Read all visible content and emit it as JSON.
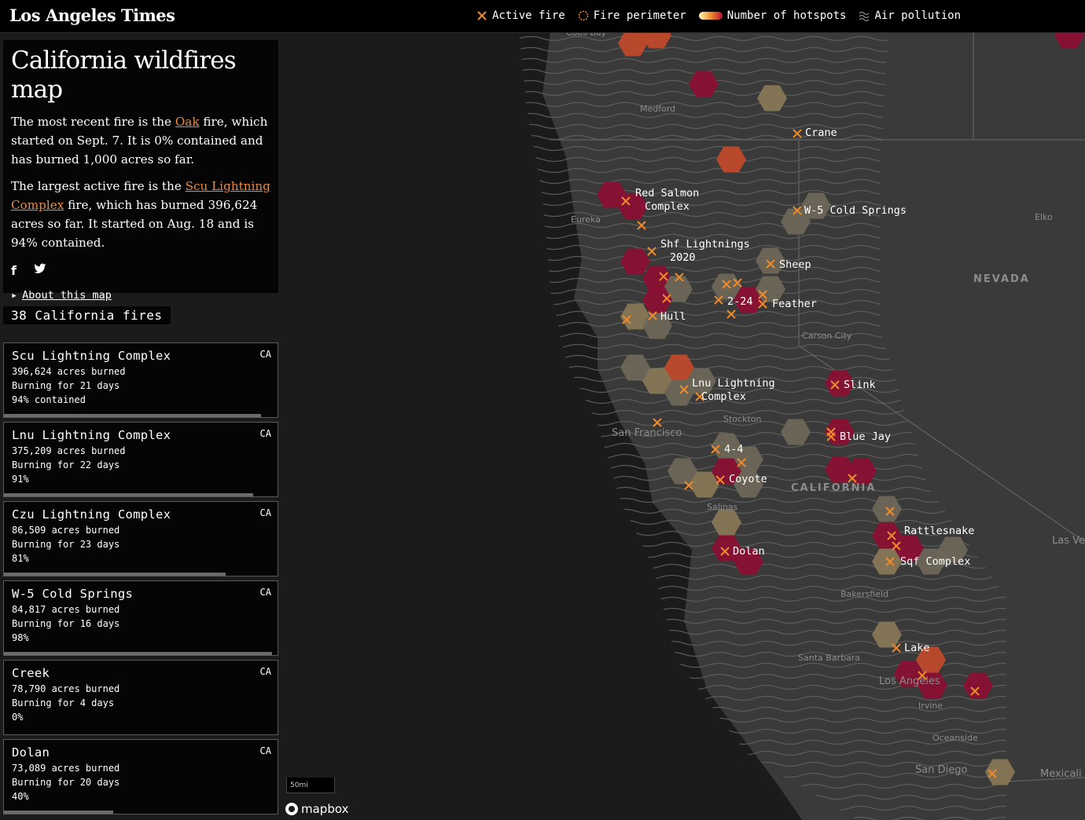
{
  "header": {
    "logo": "Los Angeles Times",
    "legend": [
      {
        "label": "Active fire",
        "icon": "x-icon"
      },
      {
        "label": "Fire perimeter",
        "icon": "perimeter-icon"
      },
      {
        "label": "Number of hotspots",
        "icon": "gradient-icon"
      },
      {
        "label": "Air pollution",
        "icon": "wave-icon"
      }
    ]
  },
  "panel": {
    "title": "California wildfires map",
    "p1": {
      "a": "The most recent fire is the ",
      "link": "Oak",
      "b": " fire, which started on Sept. 7. It is 0% contained and has burned 1,000 acres so far."
    },
    "p2": {
      "a": "The largest active fire is the ",
      "link": "Scu Lightning Complex",
      "b": " fire, which has burned 396,624 acres so far. It started on Aug. 18 and is 94% contained."
    },
    "facebook": "f",
    "twitter": "twitter-bird",
    "about": "About this map"
  },
  "fire_count": "38 California fires",
  "fires": [
    {
      "name": "Scu Lightning Complex",
      "state": "CA",
      "acres": "396,624 acres burned",
      "days": "Burning for 21 days",
      "contained": "94% contained",
      "pct": 0.94
    },
    {
      "name": "Lnu Lightning Complex",
      "state": "CA",
      "acres": "375,209 acres burned",
      "days": "Burning for 22 days",
      "contained": "91%",
      "pct": 0.91
    },
    {
      "name": "Czu Lightning Complex",
      "state": "CA",
      "acres": "86,509 acres burned",
      "days": "Burning for 23 days",
      "contained": "81%",
      "pct": 0.81
    },
    {
      "name": "W-5 Cold Springs",
      "state": "CA",
      "acres": "84,817 acres burned",
      "days": "Burning for 16 days",
      "contained": "98%",
      "pct": 0.98
    },
    {
      "name": "Creek",
      "state": "CA",
      "acres": "78,790 acres burned",
      "days": "Burning for 4 days",
      "contained": "0%",
      "pct": 0.0
    },
    {
      "name": "Dolan",
      "state": "CA",
      "acres": "73,089 acres burned",
      "days": "Burning for 20 days",
      "contained": "40%",
      "pct": 0.4
    }
  ],
  "map": {
    "fire_labels": [
      "Crane",
      "Red Salmon\nComplex",
      "W-5 Cold Springs",
      "Shf Lightnings\n2020",
      "Sheep",
      "2-24",
      "Feather",
      "Hull",
      "Lnu Lightning\nComplex",
      "Slink",
      "Blue Jay",
      "4-4",
      "Coyote",
      "Rattlesnake",
      "Sqf Complex",
      "Dolan",
      "Lake"
    ],
    "place_labels": [
      "Coos Bay",
      "Medford",
      "Eureka",
      "Elko",
      "NEVADA",
      "Carson City",
      "Stockton",
      "San Francisco",
      "CALIFORNIA",
      "Salinas",
      "Bakersfield",
      "Santa Barbara",
      "Los Angeles",
      "Irvine",
      "Oceanside",
      "San Diego",
      "Mexicali",
      "Las Vegas"
    ],
    "scale": "50mi",
    "attribution": "mapbox",
    "colors": {
      "fire_mark": "#f08a2a",
      "hex_dark": "#8c0f33",
      "hex_mid": "#c24a2a",
      "hex_light": "#8a7858",
      "hex_pale": "#6e6858"
    }
  }
}
